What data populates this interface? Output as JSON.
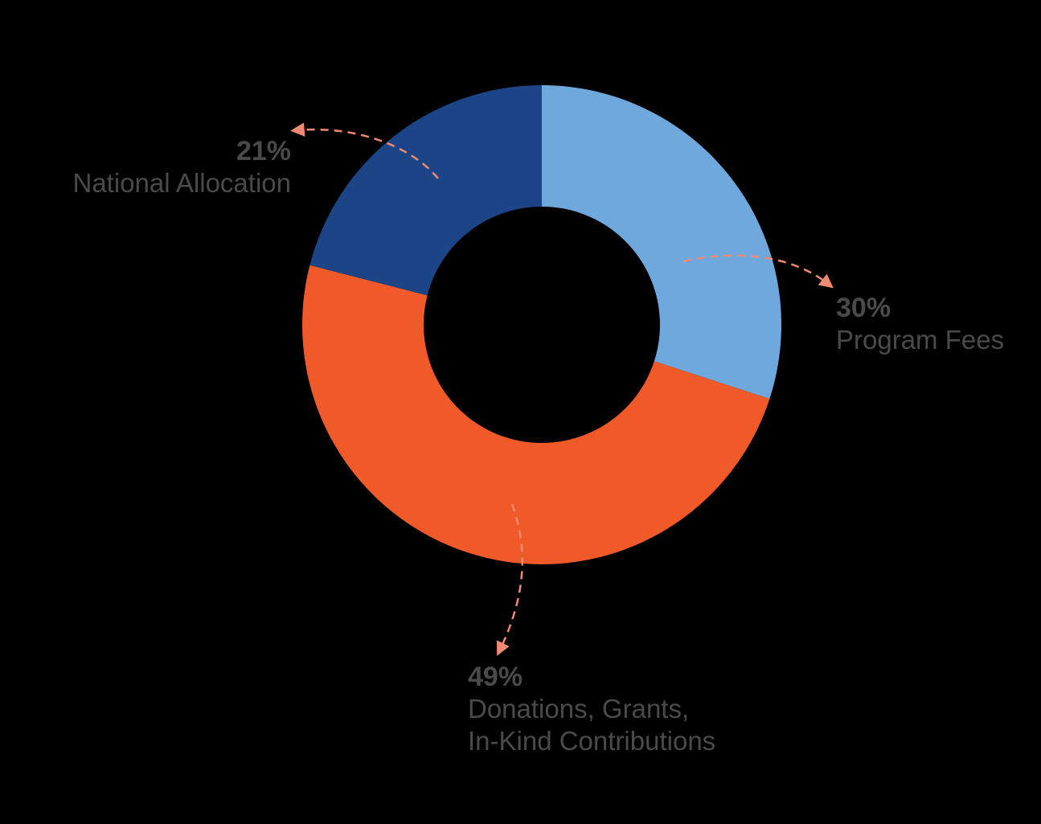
{
  "chart_data": {
    "type": "pie",
    "donut": true,
    "slices": [
      {
        "label_lines": [
          "Program Fees"
        ],
        "value": 30,
        "value_label": "30%",
        "color": "#6fa8dc"
      },
      {
        "label_lines": [
          "Donations, Grants,",
          "In-Kind Contributions"
        ],
        "value": 49,
        "value_label": "49%",
        "color": "#f05a28"
      },
      {
        "label_lines": [
          "National Allocation"
        ],
        "value": 21,
        "value_label": "21%",
        "color": "#1c4587"
      }
    ],
    "start": "top, clockwise",
    "annotation_color": "#f08a70",
    "background": "#000000"
  }
}
